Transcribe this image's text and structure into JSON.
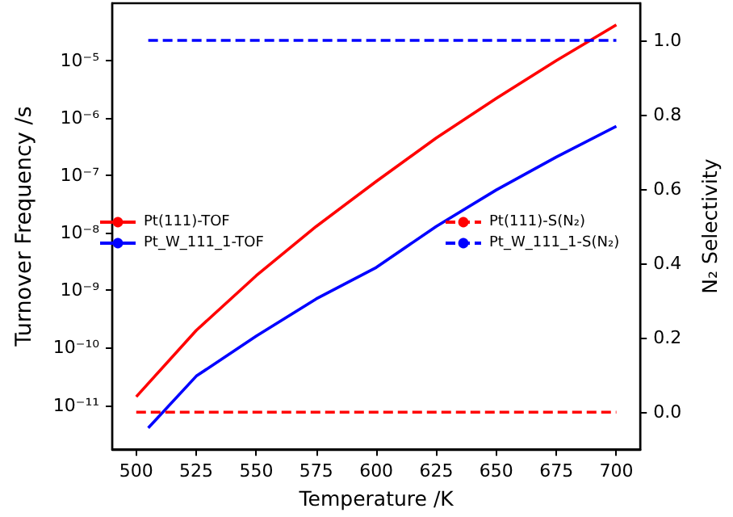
{
  "chart_data": {
    "type": "line",
    "xlabel": "Temperature /K",
    "ylabel": "Turnover Frequency /s",
    "y2label": "N₂ Selectivity",
    "xlim": [
      490,
      710
    ],
    "xticks": [
      500,
      525,
      550,
      575,
      600,
      625,
      650,
      675,
      700
    ],
    "ylim": [
      1.7e-12,
      0.0001
    ],
    "log": "y",
    "yticks": [
      {
        "value": 1e-11,
        "label": "10⁻¹¹"
      },
      {
        "value": 1e-10,
        "label": "10⁻¹⁰"
      },
      {
        "value": 1e-09,
        "label": "10⁻⁹"
      },
      {
        "value": 1e-08,
        "label": "10⁻⁸"
      },
      {
        "value": 1e-07,
        "label": "10⁻⁷"
      },
      {
        "value": 1e-06,
        "label": "10⁻⁶"
      },
      {
        "value": 1e-05,
        "label": "10⁻⁵"
      }
    ],
    "y2lim": [
      -0.1,
      1.1
    ],
    "y2ticks": [
      {
        "value": 0,
        "label": "0.0"
      },
      {
        "value": 0.2,
        "label": "0.2"
      },
      {
        "value": 0.4,
        "label": "0.4"
      },
      {
        "value": 0.6,
        "label": "0.6"
      },
      {
        "value": 0.8,
        "label": "0.8"
      },
      {
        "value": 1,
        "label": "1.0"
      }
    ],
    "grid": false,
    "marker": "none",
    "legend": "left",
    "series": [
      {
        "name": "Pt(111)-TOF",
        "color": "#ff0000",
        "line_style": "solid",
        "x": [
          500,
          525,
          550,
          575,
          600,
          625,
          650,
          675,
          700
        ],
        "values": [
          1.4e-11,
          2e-10,
          1.8e-09,
          1.3e-08,
          7.9e-08,
          4.5e-07,
          2.2e-06,
          1e-05,
          4.2e-05
        ]
      },
      {
        "name": "Pt_W_111_1-TOF",
        "color": "#0000ff",
        "line_style": "solid",
        "x": [
          505,
          525,
          550,
          575,
          600,
          625,
          650,
          675,
          700
        ],
        "values": [
          4e-12,
          3.2e-11,
          1.6e-10,
          7.1e-10,
          2.5e-09,
          1.3e-08,
          5.6e-08,
          2.1e-07,
          7.2e-07
        ]
      },
      {
        "name": "Pt(111)-S(N₂)",
        "color": "#ff0000",
        "line_style": "dashed",
        "axis": "y2",
        "x": [
          500,
          700
        ],
        "values": [
          0,
          0
        ]
      },
      {
        "name": "Pt_W_111_1-S(N₂)",
        "color": "#0000ff",
        "line_style": "dashed",
        "axis": "y2",
        "x": [
          505,
          700
        ],
        "values": [
          1,
          1
        ]
      }
    ]
  }
}
